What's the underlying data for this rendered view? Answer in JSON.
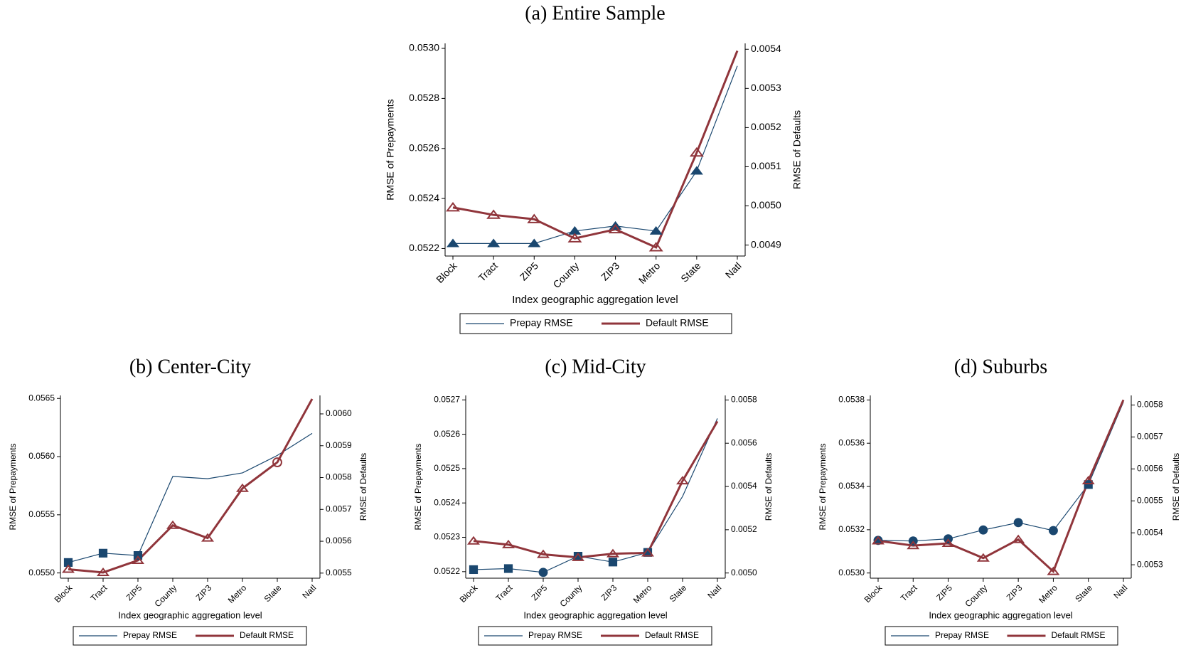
{
  "chart_data": [
    {
      "type": "line",
      "title": "(a) Entire Sample",
      "x_label": "Index geographic aggregation level",
      "y_label": "RMSE of Prepayments",
      "y2_label": "RMSE of Defaults",
      "categories": [
        "Block",
        "Tract",
        "ZIP5",
        "County",
        "ZIP3",
        "Metro",
        "State",
        "Natl"
      ],
      "ylim": [
        0.05217,
        0.05302
      ],
      "yticks": [
        0.0522,
        0.0524,
        0.0526,
        0.0528,
        {
          "value": 0.053,
          "label": "0.0530"
        }
      ],
      "y2lim": [
        0.004872,
        0.005415
      ],
      "y2ticks": [
        0.0049,
        {
          "value": 0.005,
          "label": "0.0050"
        },
        0.0051,
        0.0052,
        0.0053,
        0.0054
      ],
      "series": [
        {
          "name": "Prepay RMSE",
          "color": "#1a476f",
          "line_width": 1.2,
          "marker_style": "filled",
          "values": [
            0.05222,
            0.05222,
            0.05222,
            0.05227,
            0.05229,
            0.05227,
            0.05251,
            0.05293
          ],
          "markers": [
            "triangle",
            "triangle",
            "triangle",
            "triangle",
            "triangle",
            "triangle",
            "triangle",
            null
          ]
        },
        {
          "name": "Default RMSE",
          "color": "#90353b",
          "line_width": 3,
          "axis": "y2",
          "marker_style": "open",
          "values": [
            0.004996,
            0.004977,
            0.004966,
            0.004917,
            0.00494,
            0.004894,
            0.005136,
            0.005396
          ],
          "markers": [
            "triangle",
            "triangle",
            "triangle",
            "triangle",
            "triangle",
            "triangle",
            "triangle",
            null
          ]
        }
      ]
    },
    {
      "type": "line",
      "title": "(b) Center-City",
      "x_label": "Index geographic aggregation level",
      "y_label": "RMSE of Prepayments",
      "y2_label": "RMSE of Defaults",
      "categories": [
        "Block",
        "Tract",
        "ZIP5",
        "County",
        "ZIP3",
        "Metro",
        "State",
        "Natl"
      ],
      "ylim": [
        0.054955,
        0.056526
      ],
      "yticks": [
        {
          "value": 0.055,
          "label": "0.0550"
        },
        0.0555,
        {
          "value": 0.056,
          "label": "0.0560"
        },
        0.0565
      ],
      "y2lim": [
        0.005484,
        0.006058
      ],
      "y2ticks": [
        0.0055,
        0.0056,
        0.0057,
        0.0058,
        0.0059,
        {
          "value": 0.006,
          "label": "0.0060"
        }
      ],
      "series": [
        {
          "name": "Prepay RMSE",
          "color": "#1a476f",
          "line_width": 1.2,
          "marker_style": "filled",
          "values": [
            0.05509,
            0.05517,
            0.05515,
            0.05583,
            0.05581,
            0.05586,
            0.05601,
            0.0562
          ],
          "markers": [
            "square",
            "square",
            "square",
            null,
            null,
            null,
            null,
            null
          ]
        },
        {
          "name": "Default RMSE",
          "color": "#90353b",
          "line_width": 3,
          "axis": "y2",
          "marker_style": "open",
          "values": [
            0.005512,
            0.005502,
            0.00554,
            0.00565,
            0.00561,
            0.005766,
            0.005848,
            0.006047
          ],
          "markers": [
            "triangle",
            "triangle",
            "triangle",
            "triangle",
            "triangle",
            "triangle",
            "circle",
            null
          ]
        }
      ]
    },
    {
      "type": "line",
      "title": "(c) Mid-City",
      "x_label": "Index geographic aggregation level",
      "y_label": "RMSE of Prepayments",
      "y2_label": "RMSE of Defaults",
      "categories": [
        "Block",
        "Tract",
        "ZIP5",
        "County",
        "ZIP3",
        "Metro",
        "State",
        "Natl"
      ],
      "ylim": [
        0.052181,
        0.052713
      ],
      "yticks": [
        0.0522,
        0.0523,
        0.0524,
        0.0525,
        0.0526,
        0.0527
      ],
      "y2lim": [
        0.004976,
        0.005821
      ],
      "y2ticks": [
        {
          "value": 0.005,
          "label": "0.0050"
        },
        0.0052,
        0.0054,
        0.0056,
        0.0058
      ],
      "series": [
        {
          "name": "Prepay RMSE",
          "color": "#1a476f",
          "line_width": 1.2,
          "marker_style": "filled",
          "values": [
            0.052206,
            0.052209,
            0.052198,
            0.052245,
            0.052228,
            0.052256,
            0.052419,
            0.052646
          ],
          "markers": [
            "square",
            "square",
            "circle",
            "square",
            "square",
            "square",
            null,
            null
          ]
        },
        {
          "name": "Default RMSE",
          "color": "#90353b",
          "line_width": 3,
          "axis": "y2",
          "marker_style": "open",
          "values": [
            0.005148,
            0.005131,
            0.005086,
            0.005072,
            0.005089,
            0.005093,
            0.005426,
            0.005701
          ],
          "markers": [
            "triangle",
            "triangle",
            "triangle",
            "triangle",
            "triangle",
            "triangle",
            "triangle",
            null
          ]
        }
      ]
    },
    {
      "type": "line",
      "title": "(d) Suburbs",
      "x_label": "Index geographic aggregation level",
      "y_label": "RMSE of Prepayments",
      "y2_label": "RMSE of Defaults",
      "categories": [
        "Block",
        "Tract",
        "ZIP5",
        "County",
        "ZIP3",
        "Metro",
        "State",
        "Natl"
      ],
      "ylim": [
        0.052976,
        0.053821
      ],
      "yticks": [
        {
          "value": 0.053,
          "label": "0.0530"
        },
        0.0532,
        0.0534,
        0.0536,
        0.0538
      ],
      "y2lim": [
        0.005258,
        0.00583
      ],
      "y2ticks": [
        0.0053,
        0.0054,
        0.0055,
        0.0056,
        0.0057,
        0.0058
      ],
      "series": [
        {
          "name": "Prepay RMSE",
          "color": "#1a476f",
          "line_width": 1.2,
          "marker_style": "filled",
          "values": [
            0.053151,
            0.053148,
            0.053158,
            0.053199,
            0.053233,
            0.053196,
            0.053409,
            0.05379
          ],
          "markers": [
            "circle",
            "circle",
            "circle",
            "circle",
            "circle",
            "circle",
            "square",
            null
          ]
        },
        {
          "name": "Default RMSE",
          "color": "#90353b",
          "line_width": 3,
          "axis": "y2",
          "marker_style": "open",
          "values": [
            0.005375,
            0.00536,
            0.005367,
            0.005321,
            0.005379,
            0.005279,
            0.005563,
            0.005816
          ],
          "markers": [
            "triangle",
            "triangle",
            "triangle",
            "triangle",
            "triangle",
            "triangle",
            "triangle",
            null
          ]
        }
      ]
    }
  ]
}
